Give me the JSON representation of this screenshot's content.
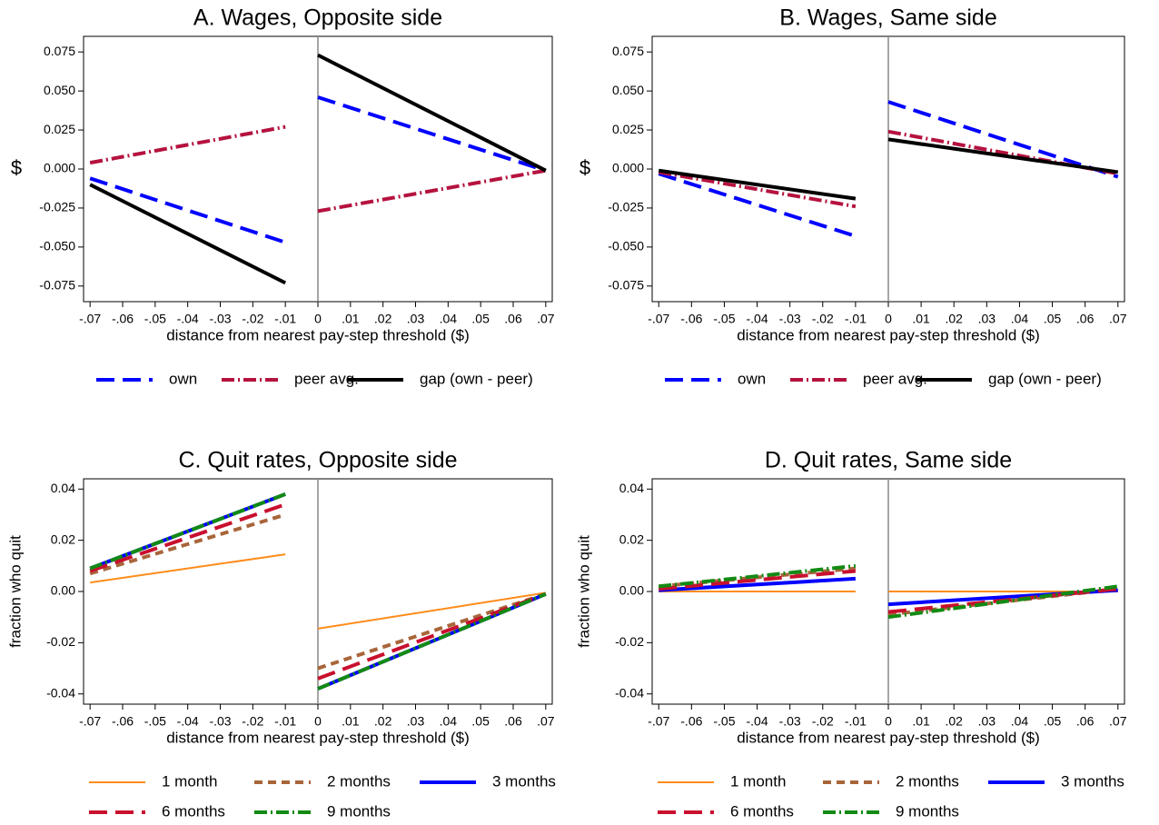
{
  "chart_data": [
    {
      "type": "line",
      "title": "A. Wages, Opposite side",
      "xlabel": "distance from nearest pay-step threshold ($)",
      "ylabel": "$",
      "x": [
        -0.07,
        -0.01,
        0,
        0.07
      ],
      "xline": 0,
      "legend": "bottom",
      "xlim": [
        -0.072,
        0.072
      ],
      "ylim": [
        -0.085,
        0.085
      ],
      "xticks": [
        {
          "value": -0.07,
          "label": "-.07"
        },
        {
          "value": -0.06,
          "label": "-.06"
        },
        {
          "value": -0.05,
          "label": "-.05"
        },
        {
          "value": -0.04,
          "label": "-.04"
        },
        {
          "value": -0.03,
          "label": "-.03"
        },
        {
          "value": -0.02,
          "label": "-.02"
        },
        {
          "value": -0.01,
          "label": "-.01"
        },
        0,
        {
          "value": 0.01,
          "label": ".01"
        },
        {
          "value": 0.02,
          "label": ".02"
        },
        {
          "value": 0.03,
          "label": ".03"
        },
        {
          "value": 0.04,
          "label": ".04"
        },
        {
          "value": 0.05,
          "label": ".05"
        },
        {
          "value": 0.06,
          "label": ".06"
        },
        {
          "value": 0.07,
          "label": ".07"
        }
      ],
      "yticks": [
        0.075,
        {
          "value": 0.05,
          "label": "0.050"
        },
        0.025,
        {
          "value": 0,
          "label": "0.000"
        },
        -0.025,
        {
          "value": -0.05,
          "label": "-0.050"
        },
        -0.075
      ],
      "series": [
        {
          "name": "own",
          "color": "#0000ff",
          "style": "long-dash",
          "values": [
            -0.006,
            -0.047,
            0.046,
            -0.001
          ]
        },
        {
          "name": "peer avg.",
          "color": "#b5123e",
          "style": "dash-dot",
          "values": [
            0.004,
            0.027,
            -0.027,
            -0.001
          ]
        },
        {
          "name": "gap (own - peer)",
          "color": "#000000",
          "style": "solid",
          "values": [
            -0.01,
            -0.073,
            0.073,
            -0.001
          ]
        }
      ]
    },
    {
      "type": "line",
      "title": "B. Wages, Same side",
      "xlabel": "distance from nearest pay-step threshold ($)",
      "ylabel": "$",
      "x": [
        -0.07,
        -0.01,
        0,
        0.07
      ],
      "xline": 0,
      "legend": "bottom",
      "xlim": [
        -0.072,
        0.072
      ],
      "ylim": [
        -0.085,
        0.085
      ],
      "xticks": [
        {
          "value": -0.07,
          "label": "-.07"
        },
        {
          "value": -0.06,
          "label": "-.06"
        },
        {
          "value": -0.05,
          "label": "-.05"
        },
        {
          "value": -0.04,
          "label": "-.04"
        },
        {
          "value": -0.03,
          "label": "-.03"
        },
        {
          "value": -0.02,
          "label": "-.02"
        },
        {
          "value": -0.01,
          "label": "-.01"
        },
        0,
        {
          "value": 0.01,
          "label": ".01"
        },
        {
          "value": 0.02,
          "label": ".02"
        },
        {
          "value": 0.03,
          "label": ".03"
        },
        {
          "value": 0.04,
          "label": ".04"
        },
        {
          "value": 0.05,
          "label": ".05"
        },
        {
          "value": 0.06,
          "label": ".06"
        },
        {
          "value": 0.07,
          "label": ".07"
        }
      ],
      "yticks": [
        0.075,
        {
          "value": 0.05,
          "label": "0.050"
        },
        0.025,
        {
          "value": 0,
          "label": "0.000"
        },
        -0.025,
        {
          "value": -0.05,
          "label": "-0.050"
        },
        -0.075
      ],
      "series": [
        {
          "name": "own",
          "color": "#0000ff",
          "style": "long-dash",
          "values": [
            -0.003,
            -0.043,
            0.043,
            -0.005
          ]
        },
        {
          "name": "peer avg.",
          "color": "#b5123e",
          "style": "dash-dot",
          "values": [
            -0.002,
            -0.024,
            0.024,
            -0.003
          ]
        },
        {
          "name": "gap (own - peer)",
          "color": "#000000",
          "style": "solid",
          "values": [
            -0.001,
            -0.019,
            0.019,
            -0.002
          ]
        }
      ]
    },
    {
      "type": "line",
      "title": "C. Quit rates, Opposite side",
      "xlabel": "distance from nearest pay-step threshold ($)",
      "ylabel": "fraction who quit",
      "x": [
        -0.07,
        -0.01,
        0,
        0.07
      ],
      "xline": 0,
      "legend": "bottom",
      "xlim": [
        -0.072,
        0.072
      ],
      "ylim": [
        -0.044,
        0.044
      ],
      "xticks": [
        {
          "value": -0.07,
          "label": "-.07"
        },
        {
          "value": -0.06,
          "label": "-.06"
        },
        {
          "value": -0.05,
          "label": "-.05"
        },
        {
          "value": -0.04,
          "label": "-.04"
        },
        {
          "value": -0.03,
          "label": "-.03"
        },
        {
          "value": -0.02,
          "label": "-.02"
        },
        {
          "value": -0.01,
          "label": "-.01"
        },
        0,
        {
          "value": 0.01,
          "label": ".01"
        },
        {
          "value": 0.02,
          "label": ".02"
        },
        {
          "value": 0.03,
          "label": ".03"
        },
        {
          "value": 0.04,
          "label": ".04"
        },
        {
          "value": 0.05,
          "label": ".05"
        },
        {
          "value": 0.06,
          "label": ".06"
        },
        {
          "value": 0.07,
          "label": ".07"
        }
      ],
      "yticks": [
        0.04,
        0.02,
        {
          "value": 0,
          "label": "0.00"
        },
        -0.02,
        -0.04
      ],
      "series": [
        {
          "name": "1 month",
          "color": "#ff8c1a",
          "style": "thin",
          "values": [
            0.0035,
            0.0145,
            -0.0145,
            -0.0005
          ]
        },
        {
          "name": "2 months",
          "color": "#a8653a",
          "style": "short-dash",
          "values": [
            0.007,
            0.03,
            -0.03,
            -0.001
          ]
        },
        {
          "name": "3 months",
          "color": "#0000ff",
          "style": "solid",
          "values": [
            0.009,
            0.038,
            -0.038,
            -0.001
          ]
        },
        {
          "name": "6 months",
          "color": "#c8102e",
          "style": "long-dash",
          "values": [
            0.008,
            0.034,
            -0.034,
            -0.001
          ]
        },
        {
          "name": "9 months",
          "color": "#138a13",
          "style": "dash-dot",
          "values": [
            0.009,
            0.038,
            -0.038,
            -0.001
          ]
        }
      ]
    },
    {
      "type": "line",
      "title": "D. Quit rates, Same side",
      "xlabel": "distance from nearest pay-step threshold ($)",
      "ylabel": "fraction who quit",
      "x": [
        -0.07,
        -0.01,
        0,
        0.07
      ],
      "xline": 0,
      "legend": "bottom",
      "xlim": [
        -0.072,
        0.072
      ],
      "ylim": [
        -0.044,
        0.044
      ],
      "xticks": [
        {
          "value": -0.07,
          "label": "-.07"
        },
        {
          "value": -0.06,
          "label": "-.06"
        },
        {
          "value": -0.05,
          "label": "-.05"
        },
        {
          "value": -0.04,
          "label": "-.04"
        },
        {
          "value": -0.03,
          "label": "-.03"
        },
        {
          "value": -0.02,
          "label": "-.02"
        },
        {
          "value": -0.01,
          "label": "-.01"
        },
        0,
        {
          "value": 0.01,
          "label": ".01"
        },
        {
          "value": 0.02,
          "label": ".02"
        },
        {
          "value": 0.03,
          "label": ".03"
        },
        {
          "value": 0.04,
          "label": ".04"
        },
        {
          "value": 0.05,
          "label": ".05"
        },
        {
          "value": 0.06,
          "label": ".06"
        },
        {
          "value": 0.07,
          "label": ".07"
        }
      ],
      "yticks": [
        0.04,
        0.02,
        {
          "value": 0,
          "label": "0.00"
        },
        -0.02,
        -0.04
      ],
      "series": [
        {
          "name": "1 month",
          "color": "#ff8c1a",
          "style": "thin",
          "values": [
            0,
            0,
            0,
            0
          ]
        },
        {
          "name": "2 months",
          "color": "#a8653a",
          "style": "short-dash",
          "values": [
            0.002,
            0.009,
            -0.009,
            0.001
          ]
        },
        {
          "name": "3 months",
          "color": "#0000ff",
          "style": "solid",
          "values": [
            0.0005,
            0.005,
            -0.005,
            0.0005
          ]
        },
        {
          "name": "6 months",
          "color": "#c8102e",
          "style": "long-dash",
          "values": [
            0.001,
            0.008,
            -0.008,
            0.001
          ]
        },
        {
          "name": "9 months",
          "color": "#138a13",
          "style": "dash-dot",
          "values": [
            0.002,
            0.01,
            -0.01,
            0.002
          ]
        }
      ]
    }
  ]
}
